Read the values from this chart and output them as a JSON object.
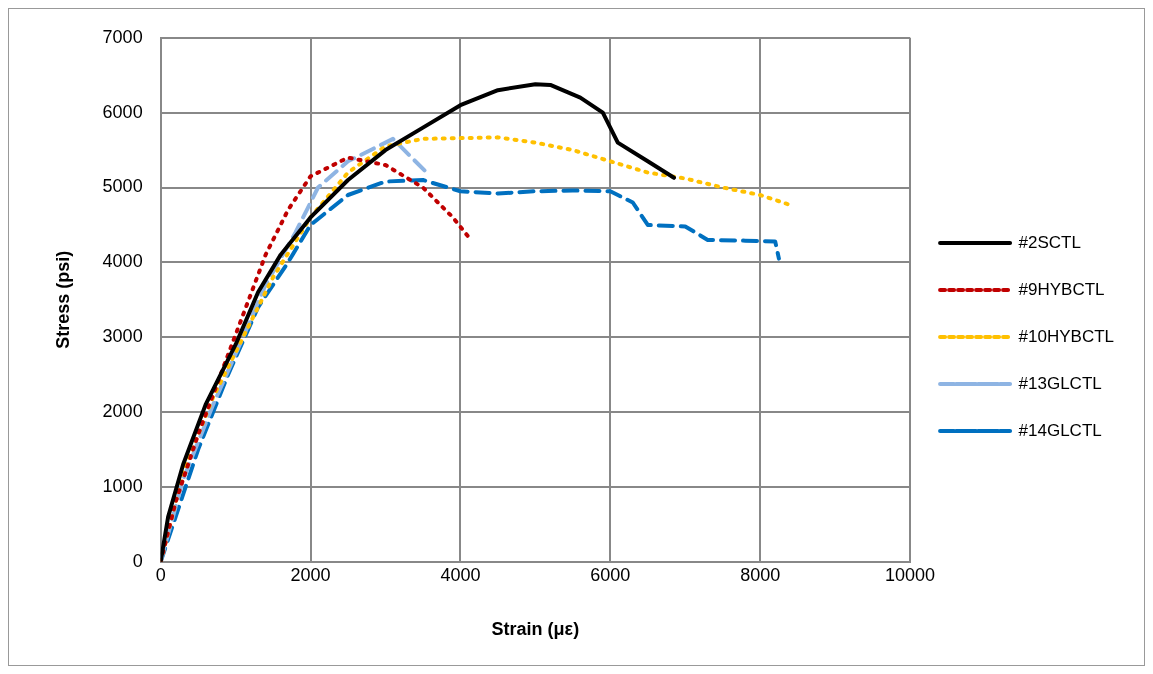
{
  "chart_data": {
    "type": "line",
    "xlabel": "Strain (με)",
    "ylabel": "Stress (psi)",
    "xlim": [
      0,
      10000
    ],
    "xticks": [
      0,
      2000,
      4000,
      6000,
      8000,
      10000
    ],
    "ylim": [
      0,
      7000
    ],
    "yticks": [
      0,
      1000,
      2000,
      3000,
      4000,
      5000,
      6000,
      7000
    ],
    "grid": true,
    "legend": "right",
    "marker": "none",
    "series": [
      {
        "name": "#2SCTL",
        "color": "#000000",
        "line_style": "solid",
        "x": [
          0,
          100,
          300,
          600,
          1000,
          1300,
          1600,
          2000,
          2500,
          3000,
          3500,
          4000,
          4500,
          5000,
          5200,
          5600,
          5900,
          6100,
          6500,
          6850
        ],
        "values": [
          0,
          600,
          1300,
          2100,
          2900,
          3600,
          4100,
          4600,
          5100,
          5500,
          5800,
          6100,
          6300,
          6380,
          6370,
          6200,
          6000,
          5600,
          5350,
          5130
        ]
      },
      {
        "name": "#9HYBCTL",
        "color": "#c00000",
        "line_style": "dotted",
        "x": [
          0,
          200,
          500,
          800,
          1100,
          1400,
          1700,
          2000,
          2500,
          3000,
          3500,
          3900,
          4100
        ],
        "values": [
          0,
          800,
          1700,
          2500,
          3300,
          4100,
          4700,
          5150,
          5400,
          5300,
          5000,
          4600,
          4350
        ]
      },
      {
        "name": "#10HYBCTL",
        "color": "#ffc000",
        "line_style": "dotted",
        "x": [
          0,
          300,
          700,
          1100,
          1500,
          2000,
          2500,
          3000,
          3500,
          4000,
          4500,
          5000,
          5500,
          6000,
          6500,
          7000,
          7500,
          8000,
          8450
        ],
        "values": [
          0,
          1200,
          2200,
          3000,
          3800,
          4600,
          5200,
          5550,
          5650,
          5660,
          5670,
          5600,
          5500,
          5350,
          5200,
          5120,
          5000,
          4900,
          4750
        ]
      },
      {
        "name": "#13GLCTL",
        "color": "#8eb4e3",
        "line_style": "dashed",
        "x": [
          0,
          300,
          700,
          1100,
          1400,
          1800,
          2100,
          2500,
          3000,
          3100,
          3550
        ],
        "values": [
          0,
          1100,
          2100,
          3000,
          3700,
          4400,
          5000,
          5350,
          5600,
          5650,
          5200
        ]
      },
      {
        "name": "#14GLCTL",
        "color": "#0070c0",
        "line_style": "dashed",
        "x": [
          0,
          200,
          500,
          900,
          1300,
          1700,
          2000,
          2500,
          3000,
          3500,
          4000,
          4500,
          5000,
          5500,
          6000,
          6300,
          6500,
          7000,
          7300,
          7800,
          8200,
          8250
        ],
        "values": [
          0,
          600,
          1500,
          2500,
          3400,
          4000,
          4500,
          4900,
          5080,
          5100,
          4950,
          4920,
          4950,
          4960,
          4950,
          4800,
          4500,
          4480,
          4300,
          4290,
          4280,
          4050
        ]
      }
    ]
  }
}
